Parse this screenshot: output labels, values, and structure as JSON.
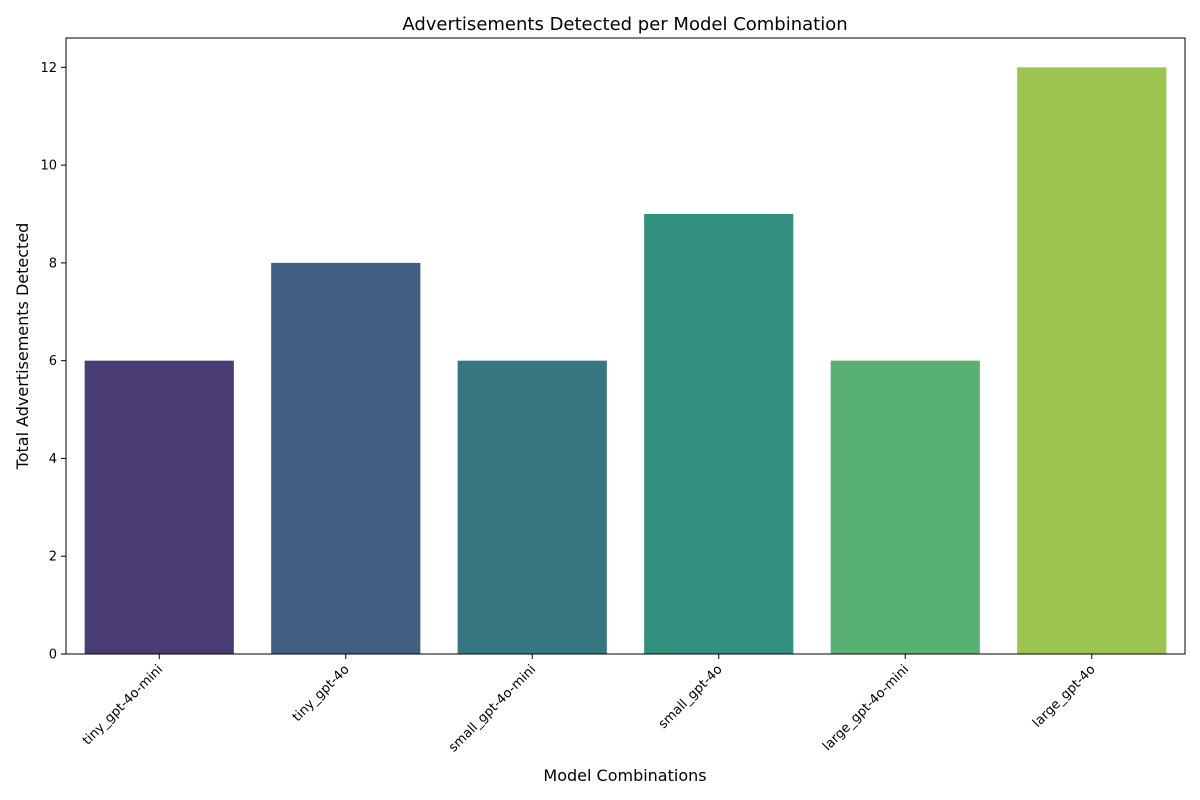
{
  "chart_data": {
    "type": "bar",
    "title": "Advertisements Detected per Model Combination",
    "xlabel": "Model Combinations",
    "ylabel": "Total Advertisements Detected",
    "categories": [
      "tiny_gpt-4o-mini",
      "tiny_gpt-4o",
      "small_gpt-4o-mini",
      "small_gpt-4o",
      "large_gpt-4o-mini",
      "large_gpt-4o"
    ],
    "values": [
      6,
      8,
      6,
      9,
      6,
      12
    ],
    "colors": [
      "#4a3c74",
      "#415f82",
      "#357681",
      "#32917e",
      "#58b173",
      "#9bc54e"
    ],
    "yticks": [
      0,
      2,
      4,
      6,
      8,
      10,
      12
    ],
    "ylim": [
      0,
      12.6
    ],
    "grid": false,
    "legend": "none"
  }
}
